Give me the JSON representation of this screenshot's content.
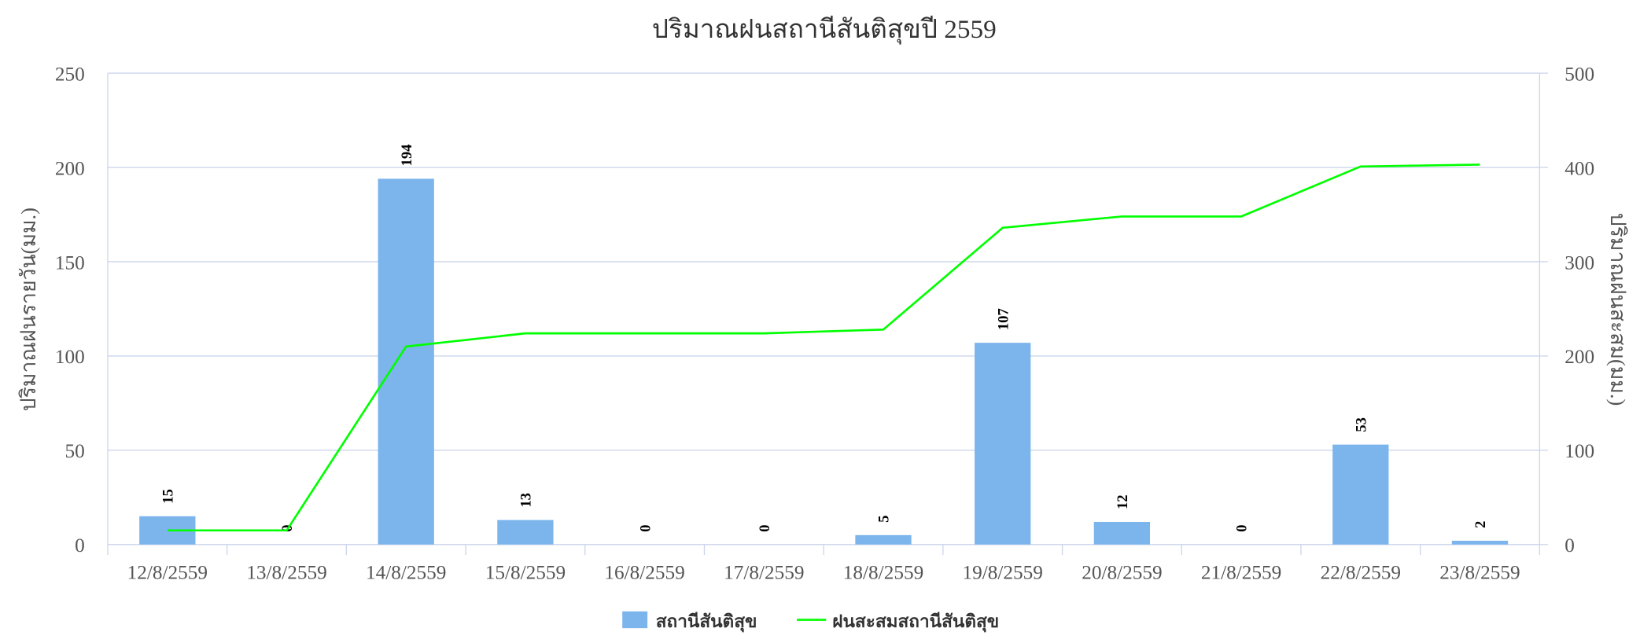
{
  "chart_data": {
    "type": "bar",
    "title": "ปริมาณฝนสถานีสันติสุขปี 2559",
    "y_label": "ปริมาณฝนรายวัน(มม.)",
    "y2_label": "ปริมาณฝนสะสม(มม.)",
    "categories": [
      "12/8/2559",
      "13/8/2559",
      "14/8/2559",
      "15/8/2559",
      "16/8/2559",
      "17/8/2559",
      "18/8/2559",
      "19/8/2559",
      "20/8/2559",
      "21/8/2559",
      "22/8/2559",
      "23/8/2559"
    ],
    "series": [
      {
        "name": "สถานีสันติสุข",
        "type": "bar",
        "color": "#7cb5ec",
        "values": [
          15,
          0,
          194,
          13,
          0,
          0,
          5,
          107,
          12,
          0,
          53,
          2
        ]
      },
      {
        "name": "ฝนสะสมสถานีสันติสุข",
        "type": "line",
        "axis": "y2",
        "color": "#00ff00",
        "values": [
          15,
          15,
          210,
          224,
          224,
          224,
          228,
          336,
          348,
          348,
          401,
          403
        ]
      }
    ],
    "ylim": [
      0,
      250
    ],
    "yticks": [
      0,
      50,
      100,
      150,
      200,
      250
    ],
    "y2lim": [
      0,
      500
    ],
    "y2ticks": [
      0,
      100,
      200,
      300,
      400,
      500
    ],
    "grid": true,
    "legend": "bottom"
  }
}
